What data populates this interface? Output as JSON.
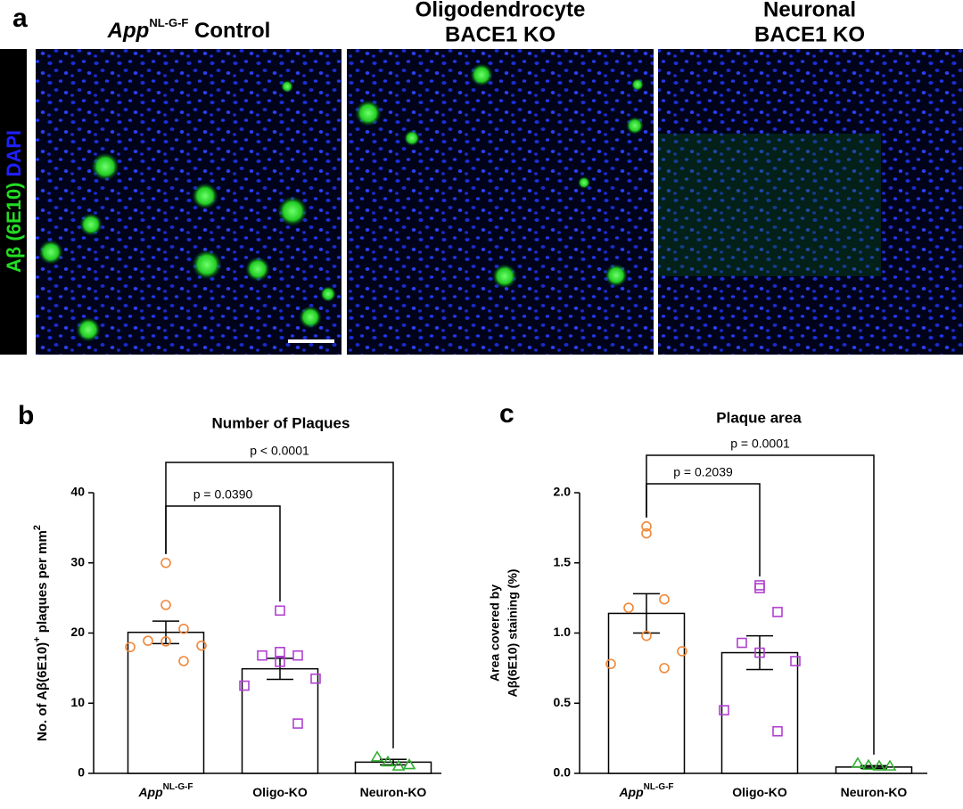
{
  "panel_labels": [
    "a",
    "b",
    "c"
  ],
  "images": {
    "side_label_green": "Aβ (6E10)",
    "side_label_blue": "DAPI",
    "titles": [
      {
        "main": "App",
        "sup": "NL-G-F",
        "rest": " Control"
      },
      {
        "line1": "Oligodendrocyte",
        "line2": "BACE1 KO"
      },
      {
        "line1": "Neuronal",
        "line2": "BACE1 KO"
      }
    ]
  },
  "chart_data": [
    {
      "type": "bar",
      "title": "Number of Plaques",
      "ylabel": [
        "No. of Aβ(6E10)",
        "+",
        " plaques per mm",
        "2"
      ],
      "categories": [
        "App",
        "Oligo-KO",
        "Neuron-KO"
      ],
      "first_category_sup": "NL-G-F",
      "values": [
        20.1,
        14.9,
        1.6
      ],
      "errors": [
        1.6,
        1.5,
        0.4
      ],
      "points": [
        [
          30,
          24,
          20.6,
          18.9,
          18.8,
          18.2,
          18.0,
          16.0
        ],
        [
          23.2,
          17.3,
          16.8,
          16.8,
          15.9,
          13.5,
          12.5,
          7.1
        ],
        [
          2.3,
          1.6,
          1.2,
          1.0
        ]
      ],
      "point_colors": [
        "#f0883a",
        "#b040d0",
        "#30b030"
      ],
      "point_shapes": [
        "circle",
        "square",
        "triangle"
      ],
      "ylim": [
        0,
        40
      ],
      "yticks": [
        0,
        10,
        20,
        30,
        40
      ],
      "comparisons": [
        "p = 0.0390",
        "p < 0.0001"
      ]
    },
    {
      "type": "bar",
      "title": "Plaque area",
      "ylabel": [
        "Area covered by",
        "Aβ(6E10) staining (%)"
      ],
      "categories": [
        "App",
        "Oligo-KO",
        "Neuron-KO"
      ],
      "first_category_sup": "NL-G-F",
      "values": [
        1.14,
        0.86,
        0.045
      ],
      "errors": [
        0.14,
        0.12,
        0.01
      ],
      "points": [
        [
          1.76,
          1.71,
          1.24,
          1.18,
          0.98,
          0.87,
          0.78,
          0.75
        ],
        [
          1.34,
          1.32,
          1.15,
          0.93,
          0.86,
          0.8,
          0.45,
          0.3
        ],
        [
          0.07,
          0.055,
          0.05,
          0.05
        ]
      ],
      "point_colors": [
        "#f0883a",
        "#b040d0",
        "#30b030"
      ],
      "point_shapes": [
        "circle",
        "square",
        "triangle"
      ],
      "ylim": [
        0,
        2
      ],
      "yticks": [
        {
          "value": 0,
          "label": "0.0"
        },
        {
          "value": 0.5,
          "label": "0.5"
        },
        {
          "value": 1,
          "label": "1.0"
        },
        {
          "value": 1.5,
          "label": "1.5"
        },
        {
          "value": 2,
          "label": "2.0"
        }
      ],
      "comparisons": [
        "p = 0.2039",
        "p = 0.0001"
      ]
    }
  ]
}
